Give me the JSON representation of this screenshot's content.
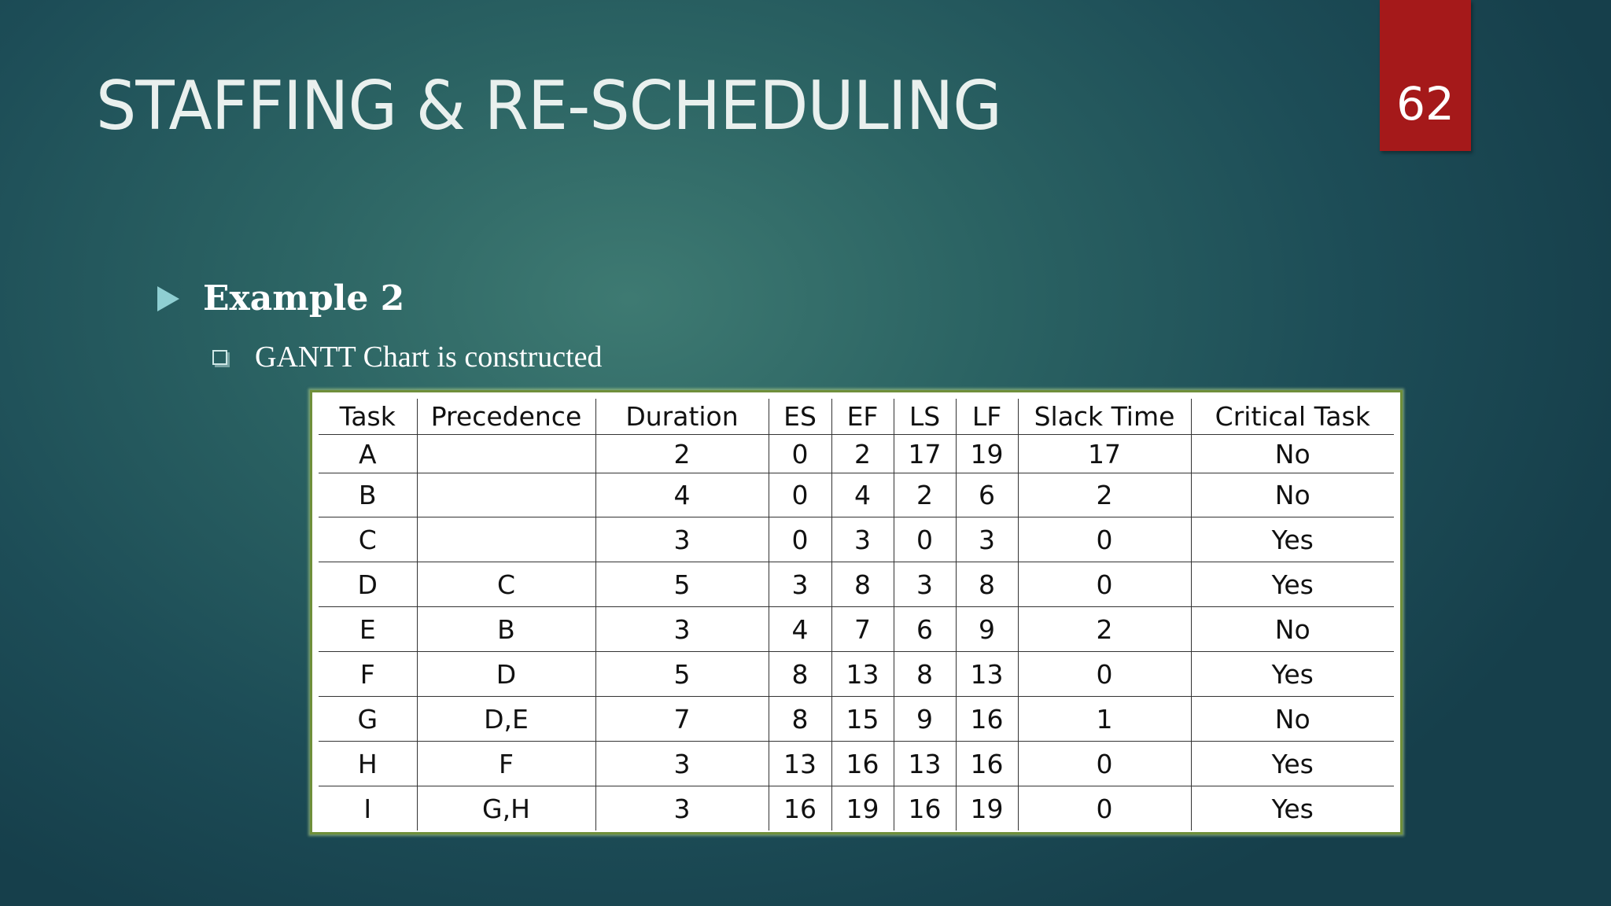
{
  "slide": {
    "title": "STAFFING & RE-SCHEDULING",
    "page_number": "62",
    "accent_color": "#a5191a",
    "bullet": {
      "icon": "triangle-bullet-icon",
      "text": "Example 2"
    },
    "sub_bullet": {
      "icon": "square-bullet-icon",
      "text": "GANTT Chart is constructed"
    }
  },
  "table": {
    "headers": [
      "Task",
      "Precedence",
      "Duration",
      "ES",
      "EF",
      "LS",
      "LF",
      "Slack Time",
      "Critical Task"
    ],
    "rows": [
      [
        "A",
        "",
        "2",
        "0",
        "2",
        "17",
        "19",
        "17",
        "No"
      ],
      [
        "B",
        "",
        "4",
        "0",
        "4",
        "2",
        "6",
        "2",
        "No"
      ],
      [
        "C",
        "",
        "3",
        "0",
        "3",
        "0",
        "3",
        "0",
        "Yes"
      ],
      [
        "D",
        "C",
        "5",
        "3",
        "8",
        "3",
        "8",
        "0",
        "Yes"
      ],
      [
        "E",
        "B",
        "3",
        "4",
        "7",
        "6",
        "9",
        "2",
        "No"
      ],
      [
        "F",
        "D",
        "5",
        "8",
        "13",
        "8",
        "13",
        "0",
        "Yes"
      ],
      [
        "G",
        "D,E",
        "7",
        "8",
        "15",
        "9",
        "16",
        "1",
        "No"
      ],
      [
        "H",
        "F",
        "3",
        "13",
        "16",
        "13",
        "16",
        "0",
        "Yes"
      ],
      [
        "I",
        "G,H",
        "3",
        "16",
        "19",
        "16",
        "19",
        "0",
        "Yes"
      ]
    ]
  }
}
